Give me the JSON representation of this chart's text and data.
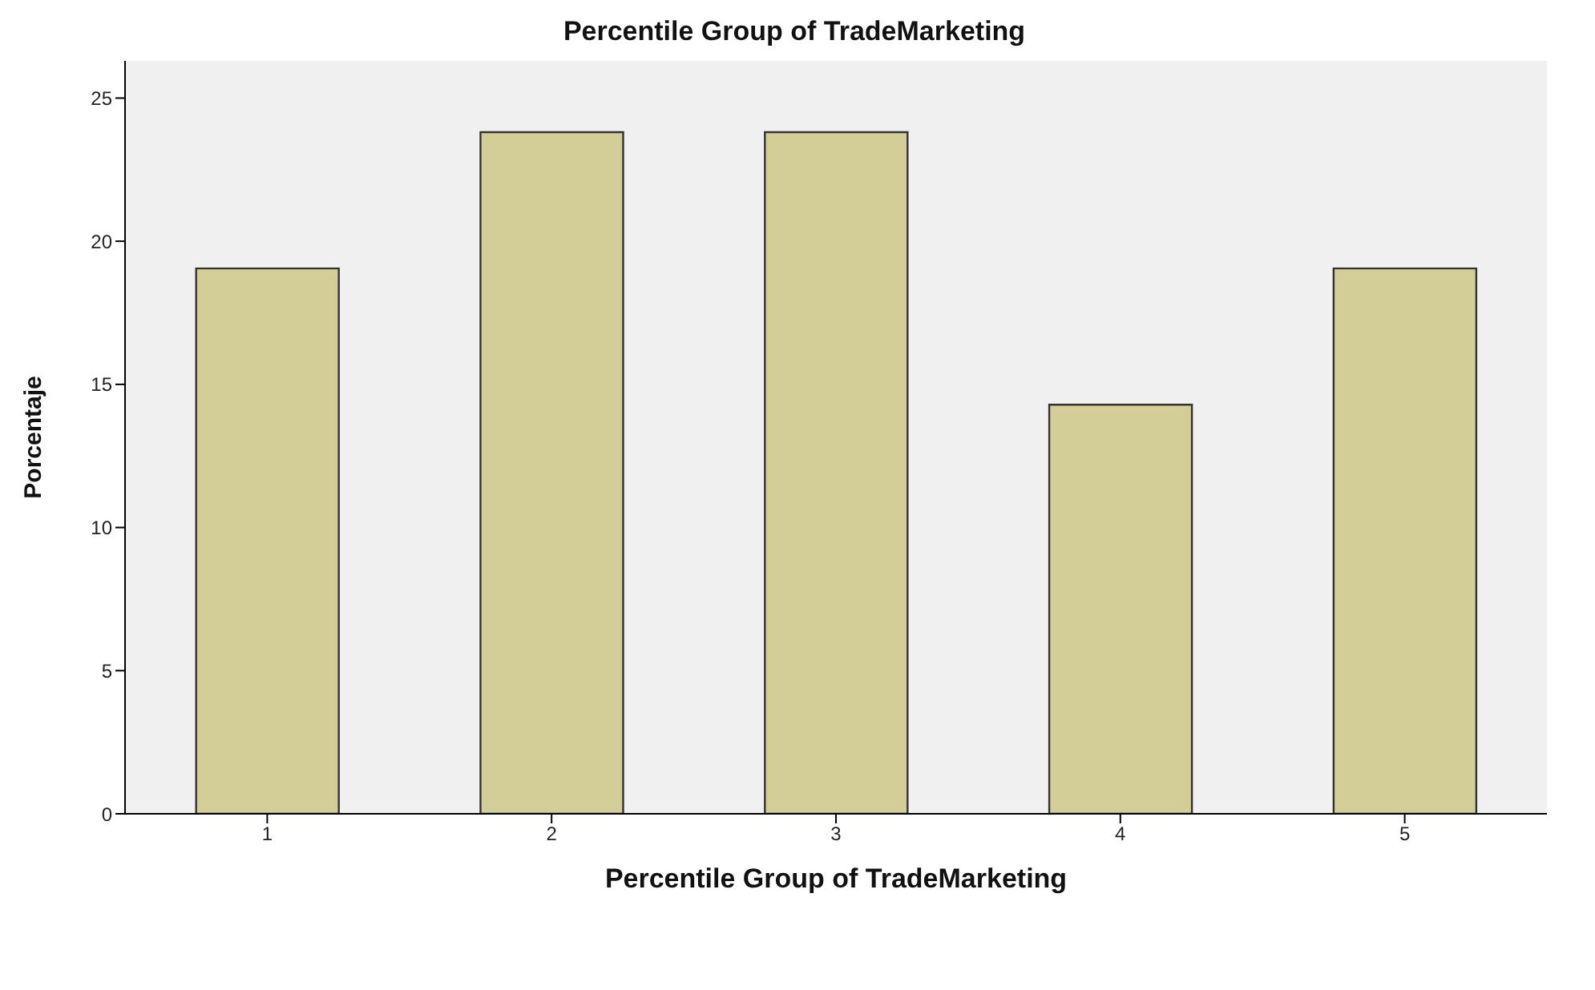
{
  "chart_data": {
    "type": "bar",
    "title": "Percentile Group of TradeMarketing",
    "xlabel": "Percentile Group of TradeMarketing",
    "ylabel": "Porcentaje",
    "categories": [
      "1",
      "2",
      "3",
      "4",
      "5"
    ],
    "values": [
      19.05,
      23.81,
      23.81,
      14.29,
      19.05
    ],
    "color": "#d3ce97",
    "ylim": [
      0,
      26.3
    ],
    "yticks": [
      0,
      5,
      10,
      15,
      20,
      25
    ],
    "grid": false
  }
}
